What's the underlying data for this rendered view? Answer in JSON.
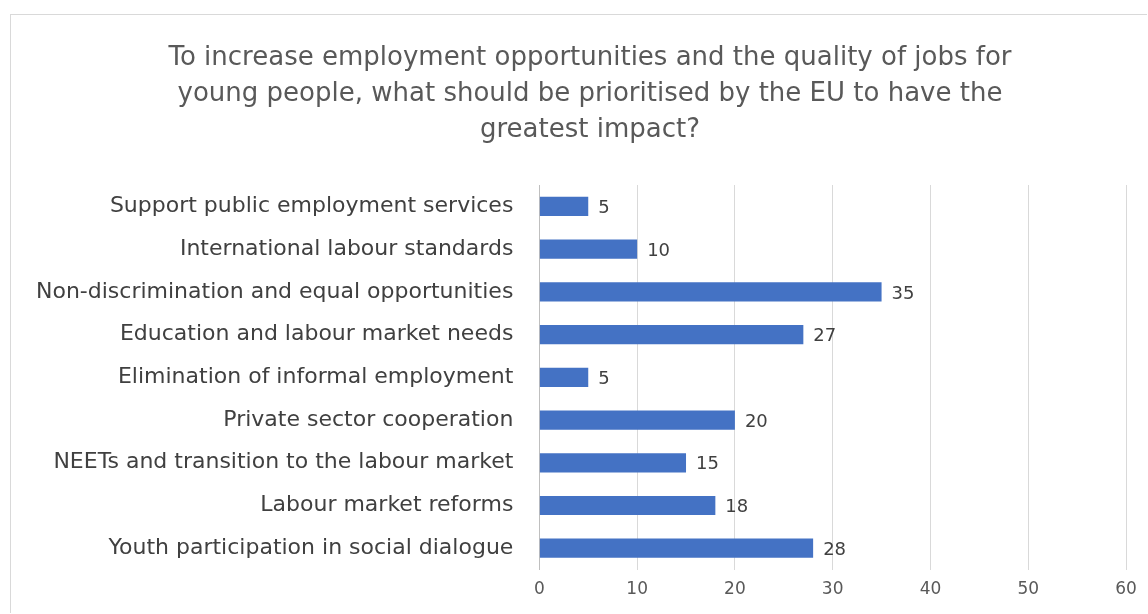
{
  "chart_data": {
    "type": "bar",
    "orientation": "horizontal",
    "title": "To increase employment opportunities and the quality of jobs for young people, what should be prioritised by the EU to have the greatest impact?",
    "categories": [
      "Support public employment services",
      "International labour standards",
      "Non-discrimination and equal opportunities",
      "Education and labour market needs",
      "Elimination of informal employment",
      "Private sector cooperation",
      "NEETs and transition to the labour market",
      "Labour market reforms",
      "Youth participation in social dialogue"
    ],
    "values": [
      5,
      10,
      35,
      27,
      5,
      20,
      15,
      18,
      28
    ],
    "color": "#4472c4",
    "xlim": [
      0,
      60
    ],
    "xticks": [
      0,
      10,
      20,
      30,
      40,
      50,
      60
    ],
    "grid": "x",
    "data_labels": true,
    "legend": false
  }
}
